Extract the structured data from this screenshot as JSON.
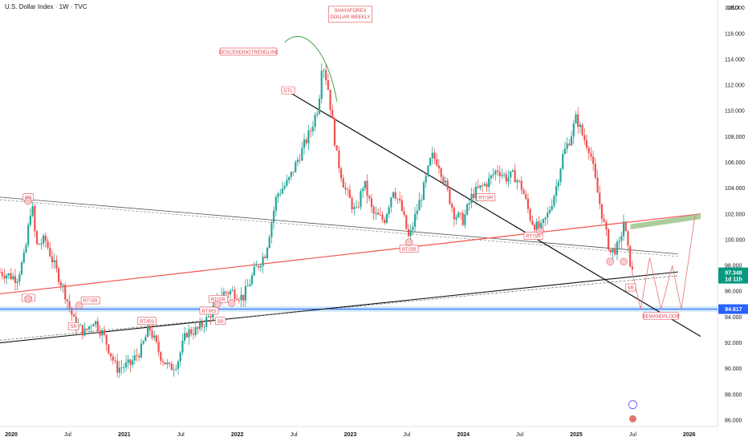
{
  "header": {
    "title": "U.S. Dollar Index · 1W · TVC",
    "currency": "USD"
  },
  "colors": {
    "up": "#26a69a",
    "down": "#ef5350",
    "price_tag": "#089981",
    "support_tag": "#2962ff",
    "annotation": "#e0454f",
    "curve": "#43a047",
    "zone": "#9bc48a"
  },
  "chart_data": {
    "type": "candlestick",
    "title": "SHAYAFOREX DOLLAR WEEKLY",
    "ylim": [
      85.5,
      118.6
    ],
    "xlim": [
      2019.9,
      2026.25
    ],
    "y_ticks": [
      "86.000",
      "88.000",
      "90.000",
      "92.000",
      "94.000",
      "96.000",
      "98.000",
      "100.000",
      "102.000",
      "104.000",
      "106.000",
      "108.000",
      "110.000",
      "112.000",
      "114.000",
      "116.000",
      "118.000"
    ],
    "x_ticks": [
      {
        "label": "2020",
        "x": 2020.0
      },
      {
        "label": "Jul",
        "x": 2020.5
      },
      {
        "label": "2021",
        "x": 2021.0
      },
      {
        "label": "Jul",
        "x": 2021.5
      },
      {
        "label": "2022",
        "x": 2022.0
      },
      {
        "label": "Jul",
        "x": 2022.5
      },
      {
        "label": "2023",
        "x": 2023.0
      },
      {
        "label": "Jul",
        "x": 2023.5
      },
      {
        "label": "2024",
        "x": 2024.0
      },
      {
        "label": "Jul",
        "x": 2024.5
      },
      {
        "label": "2025",
        "x": 2025.0
      },
      {
        "label": "Jul",
        "x": 2025.5
      },
      {
        "label": "2026",
        "x": 2026.0
      }
    ],
    "price_path": [
      [
        2019.9,
        97.5
      ],
      [
        2020.05,
        97.0
      ],
      [
        2020.12,
        98.8
      ],
      [
        2020.18,
        103.0
      ],
      [
        2020.22,
        99.5
      ],
      [
        2020.3,
        100.0
      ],
      [
        2020.38,
        98.0
      ],
      [
        2020.47,
        96.0
      ],
      [
        2020.56,
        93.5
      ],
      [
        2020.65,
        92.8
      ],
      [
        2020.73,
        93.8
      ],
      [
        2020.82,
        92.5
      ],
      [
        2020.93,
        90.0
      ],
      [
        2021.05,
        90.3
      ],
      [
        2021.15,
        91.5
      ],
      [
        2021.22,
        93.2
      ],
      [
        2021.32,
        91.0
      ],
      [
        2021.4,
        90.0
      ],
      [
        2021.47,
        90.5
      ],
      [
        2021.55,
        92.8
      ],
      [
        2021.65,
        93.0
      ],
      [
        2021.75,
        94.0
      ],
      [
        2021.85,
        95.8
      ],
      [
        2021.95,
        96.0
      ],
      [
        2022.05,
        95.5
      ],
      [
        2022.15,
        97.5
      ],
      [
        2022.25,
        99.0
      ],
      [
        2022.35,
        103.5
      ],
      [
        2022.45,
        104.5
      ],
      [
        2022.55,
        106.5
      ],
      [
        2022.65,
        108.5
      ],
      [
        2022.72,
        110.5
      ],
      [
        2022.75,
        114.0
      ],
      [
        2022.8,
        112.0
      ],
      [
        2022.88,
        106.5
      ],
      [
        2022.95,
        104.0
      ],
      [
        2023.05,
        102.0
      ],
      [
        2023.12,
        104.5
      ],
      [
        2023.2,
        102.0
      ],
      [
        2023.3,
        101.5
      ],
      [
        2023.38,
        104.0
      ],
      [
        2023.45,
        102.5
      ],
      [
        2023.52,
        100.0
      ],
      [
        2023.58,
        102.0
      ],
      [
        2023.65,
        104.0
      ],
      [
        2023.72,
        106.5
      ],
      [
        2023.78,
        106.0
      ],
      [
        2023.85,
        104.0
      ],
      [
        2023.92,
        102.0
      ],
      [
        2024.0,
        101.5
      ],
      [
        2024.08,
        103.5
      ],
      [
        2024.15,
        104.0
      ],
      [
        2024.22,
        104.5
      ],
      [
        2024.3,
        105.5
      ],
      [
        2024.38,
        104.8
      ],
      [
        2024.45,
        105.0
      ],
      [
        2024.52,
        104.0
      ],
      [
        2024.6,
        101.5
      ],
      [
        2024.68,
        100.7
      ],
      [
        2024.75,
        102.0
      ],
      [
        2024.82,
        104.0
      ],
      [
        2024.88,
        106.5
      ],
      [
        2024.95,
        108.0
      ],
      [
        2025.0,
        109.5
      ],
      [
        2025.06,
        108.0
      ],
      [
        2025.12,
        107.0
      ],
      [
        2025.18,
        104.0
      ],
      [
        2025.25,
        101.0
      ],
      [
        2025.3,
        99.0
      ],
      [
        2025.38,
        99.5
      ],
      [
        2025.42,
        101.5
      ],
      [
        2025.46,
        99.0
      ],
      [
        2025.5,
        97.3
      ]
    ],
    "last_price": "97.348",
    "countdown": "1d 11h",
    "support_price": "94.617",
    "annotations": [
      {
        "id": "rs",
        "text": "RS",
        "x": 2020.15,
        "y": 103.2
      },
      {
        "id": "sr-left",
        "text": "S/R",
        "x": 2020.15,
        "y": 95.4
      },
      {
        "id": "rt-left",
        "text": "RT/SR",
        "x": 2020.7,
        "y": 95.2
      },
      {
        "id": "sr-bottom",
        "text": "SR",
        "x": 2020.55,
        "y": 93.2
      },
      {
        "id": "rt-mid",
        "text": "RT/RS",
        "x": 2021.2,
        "y": 93.6
      },
      {
        "id": "rt-a",
        "text": "RT/RS",
        "x": 2021.75,
        "y": 94.4
      },
      {
        "id": "rt-b",
        "text": "RT/SR",
        "x": 2021.83,
        "y": 95.3
      },
      {
        "id": "sr-c",
        "text": "SR",
        "x": 2021.85,
        "y": 93.6
      },
      {
        "id": "dtl",
        "text": "DTL",
        "x": 2022.45,
        "y": 111.5
      },
      {
        "id": "desc",
        "text": "DESCENDINGTRENDLINE",
        "x": 2022.1,
        "y": 114.5
      },
      {
        "id": "rt-jul23",
        "text": "RT/SR",
        "x": 2023.52,
        "y": 99.2
      },
      {
        "id": "rt-2024",
        "text": "RT/SR",
        "x": 2024.2,
        "y": 103.2
      },
      {
        "id": "rt-jun24",
        "text": "RT/SR",
        "x": 2024.62,
        "y": 100.2
      },
      {
        "id": "sr-2025",
        "text": "SR",
        "x": 2025.48,
        "y": 96.2
      },
      {
        "id": "demand",
        "text": "DEMANDFLOOR",
        "x": 2025.75,
        "y": 94.0
      }
    ],
    "brand": "SHAYAFOREX"
  }
}
